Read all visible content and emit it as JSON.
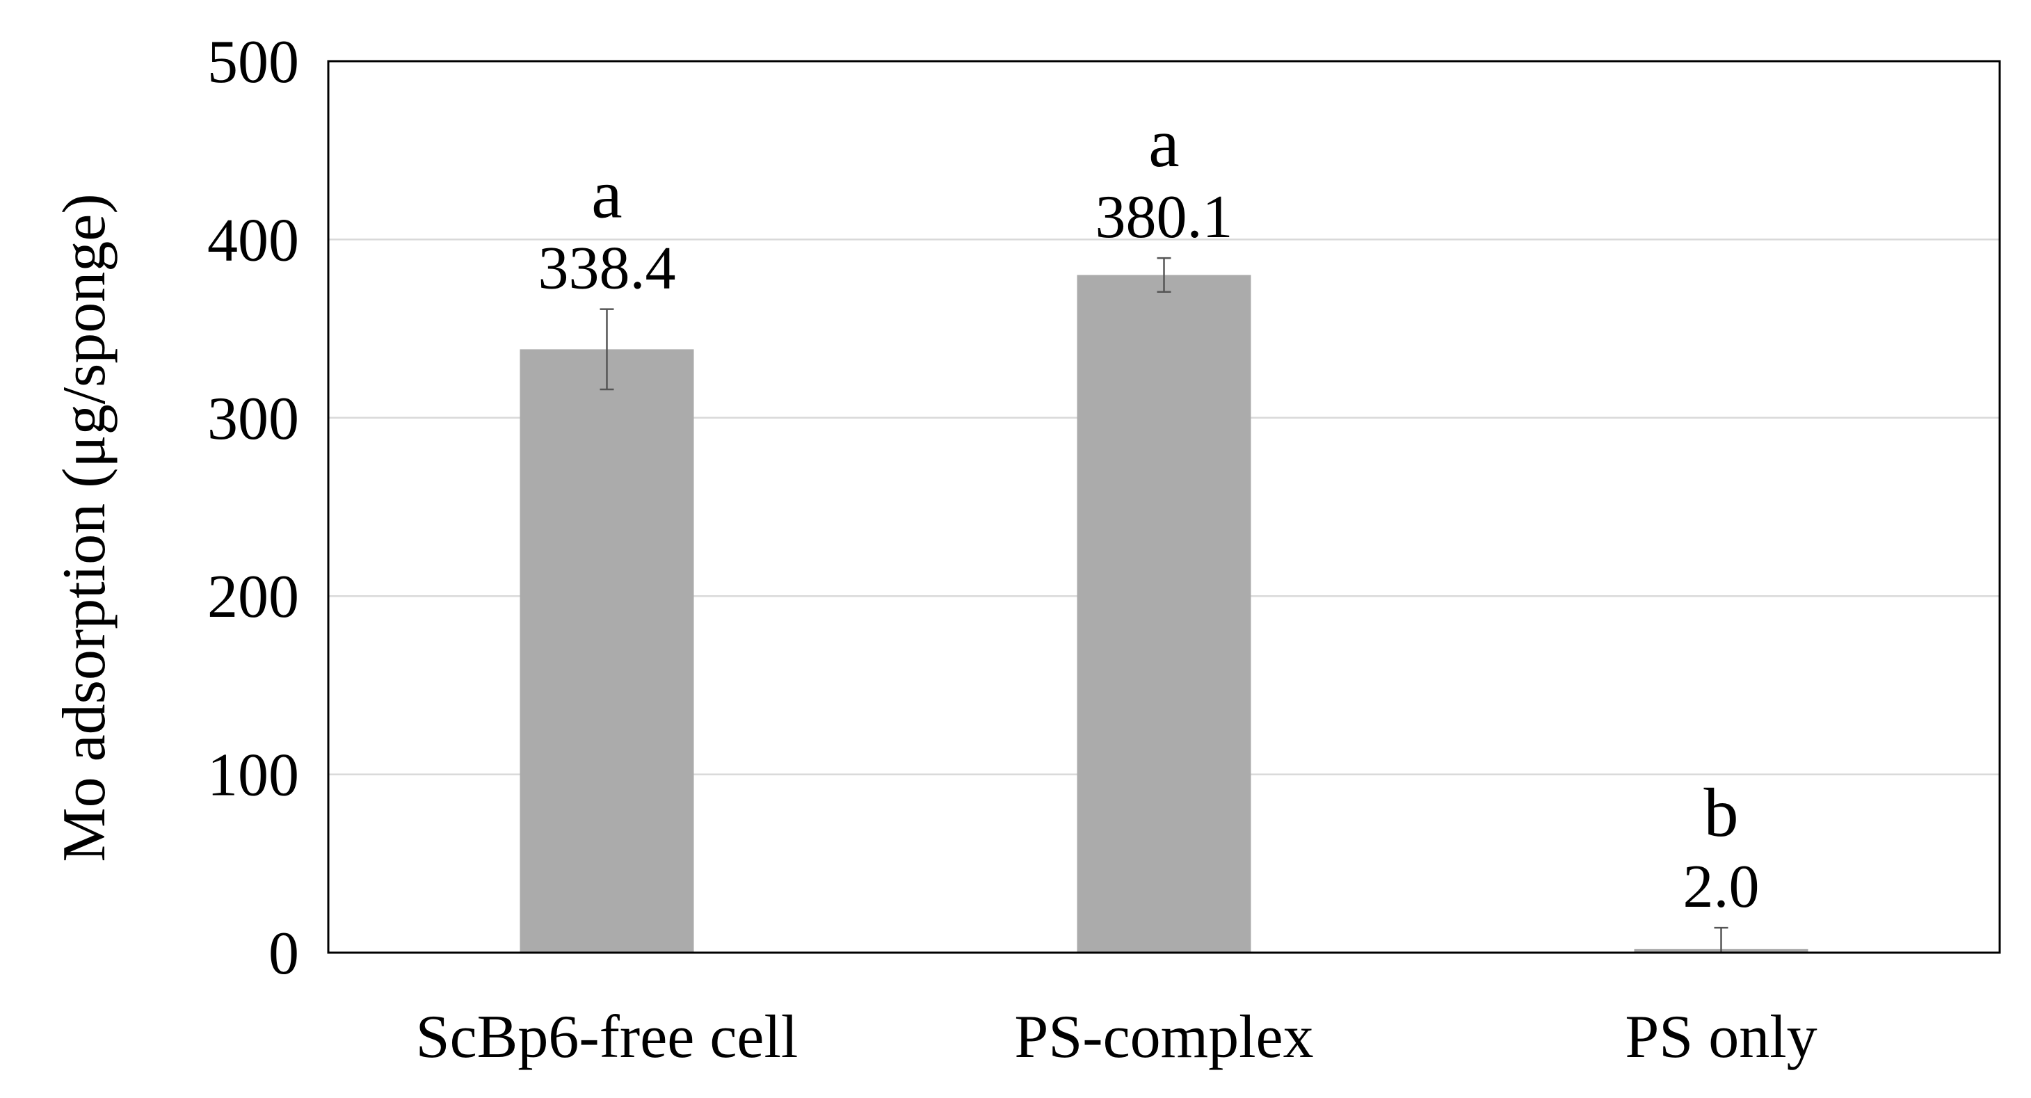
{
  "chart_data": {
    "type": "bar",
    "title": "",
    "xlabel": "",
    "ylabel": "Mo adsorption (μg/sponge)",
    "ylim": [
      0,
      500
    ],
    "yticks": [
      0,
      100,
      200,
      300,
      400,
      500
    ],
    "grid": true,
    "legend": "none",
    "categories": [
      "ScBp6-free cell",
      "PS-complex",
      "PS only"
    ],
    "values": [
      338.4,
      380.1,
      2.0
    ],
    "value_labels": [
      "338.4",
      "380.1",
      "2.0"
    ],
    "error": [
      22.5,
      9.5,
      12.0
    ],
    "significance_letters": [
      "a",
      "a",
      "b"
    ],
    "bar_color": "#ababab",
    "error_bar_color": "#555555",
    "grid_color": "#d9d9d9"
  }
}
